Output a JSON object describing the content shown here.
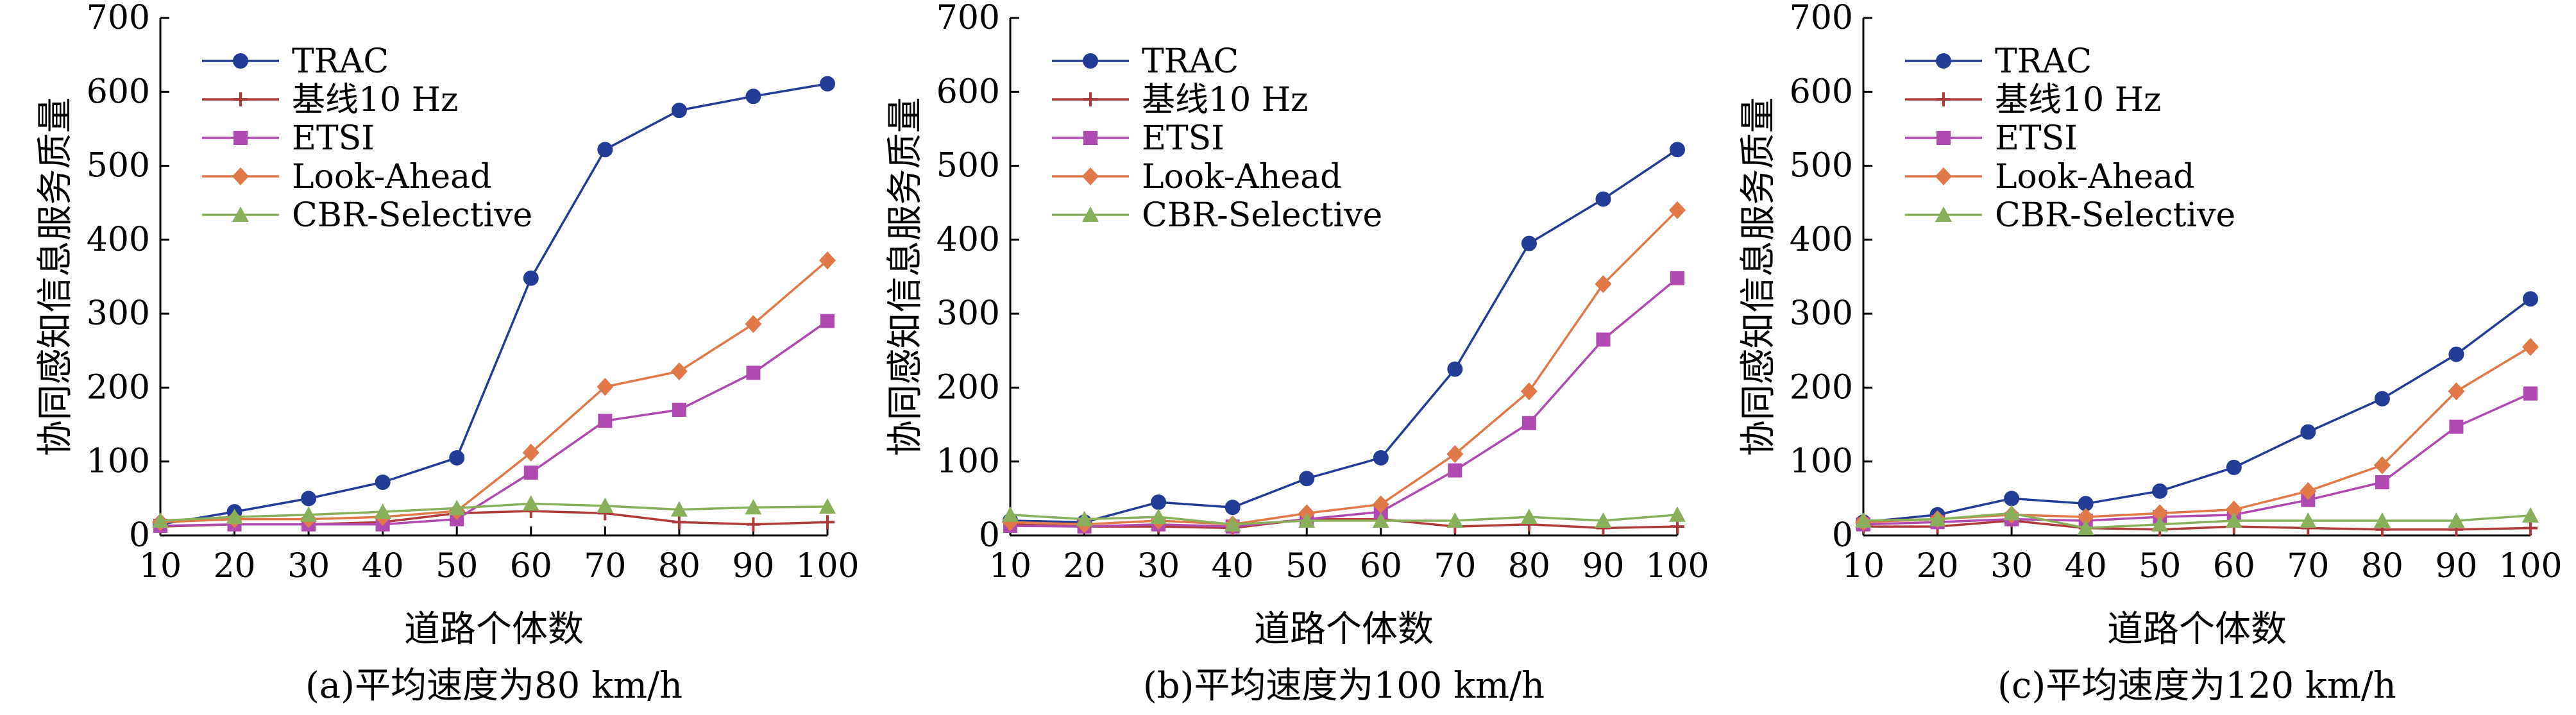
{
  "chart_data": [
    {
      "type": "line",
      "caption": "(a)平均速度为80 km/h",
      "xlabel": "道路个体数",
      "ylabel": "协同感知信息服务质量",
      "x": [
        10,
        20,
        30,
        40,
        50,
        60,
        70,
        80,
        90,
        100
      ],
      "xlim": [
        10,
        100
      ],
      "ylim": [
        0,
        700
      ],
      "xticks": [
        "10",
        "20",
        "30",
        "40",
        "50",
        "60",
        "70",
        "80",
        "90",
        "100"
      ],
      "yticks": [
        "0",
        "100",
        "200",
        "300",
        "400",
        "500",
        "600",
        "700"
      ],
      "legend_position": "top-left",
      "series": [
        {
          "name": "TRAC",
          "color": "#233c96",
          "marker": "circle",
          "values": [
            15,
            32,
            50,
            72,
            105,
            348,
            522,
            575,
            594,
            611
          ]
        },
        {
          "name": "基线10 Hz",
          "color": "#b03a3a",
          "marker": "plus",
          "values": [
            12,
            15,
            15,
            18,
            30,
            33,
            30,
            18,
            15,
            18
          ]
        },
        {
          "name": "ETSI",
          "color": "#b04ab0",
          "marker": "square",
          "values": [
            13,
            15,
            15,
            15,
            22,
            85,
            155,
            170,
            220,
            290
          ]
        },
        {
          "name": "Look-Ahead",
          "color": "#e07848",
          "marker": "diamond",
          "values": [
            18,
            22,
            22,
            25,
            33,
            112,
            201,
            222,
            286,
            372
          ]
        },
        {
          "name": "CBR-Selective",
          "color": "#88b05a",
          "marker": "triangle",
          "values": [
            20,
            25,
            28,
            32,
            37,
            43,
            40,
            35,
            38,
            39
          ]
        }
      ]
    },
    {
      "type": "line",
      "caption": "(b)平均速度为100 km/h",
      "xlabel": "道路个体数",
      "ylabel": "协同感知信息服务质量",
      "x": [
        10,
        20,
        30,
        40,
        50,
        60,
        70,
        80,
        90,
        100
      ],
      "xlim": [
        10,
        100
      ],
      "ylim": [
        0,
        700
      ],
      "xticks": [
        "10",
        "20",
        "30",
        "40",
        "50",
        "60",
        "70",
        "80",
        "90",
        "100"
      ],
      "yticks": [
        "0",
        "100",
        "200",
        "300",
        "400",
        "500",
        "600",
        "700"
      ],
      "legend_position": "top-left",
      "series": [
        {
          "name": "TRAC",
          "color": "#233c96",
          "marker": "circle",
          "values": [
            20,
            18,
            45,
            38,
            77,
            105,
            225,
            395,
            455,
            522
          ]
        },
        {
          "name": "基线10 Hz",
          "color": "#b03a3a",
          "marker": "plus",
          "values": [
            15,
            12,
            12,
            10,
            22,
            22,
            12,
            15,
            10,
            12
          ]
        },
        {
          "name": "ETSI",
          "color": "#b04ab0",
          "marker": "square",
          "values": [
            13,
            12,
            15,
            12,
            22,
            32,
            88,
            152,
            265,
            348
          ]
        },
        {
          "name": "Look-Ahead",
          "color": "#e07848",
          "marker": "diamond",
          "values": [
            18,
            15,
            20,
            15,
            30,
            42,
            110,
            195,
            340,
            440
          ]
        },
        {
          "name": "CBR-Selective",
          "color": "#88b05a",
          "marker": "triangle",
          "values": [
            28,
            22,
            25,
            15,
            20,
            20,
            20,
            25,
            20,
            28
          ]
        }
      ]
    },
    {
      "type": "line",
      "caption": "(c)平均速度为120 km/h",
      "xlabel": "道路个体数",
      "ylabel": "协同感知信息服务质量",
      "x": [
        10,
        20,
        30,
        40,
        50,
        60,
        70,
        80,
        90,
        100
      ],
      "xlim": [
        10,
        100
      ],
      "ylim": [
        0,
        700
      ],
      "xticks": [
        "10",
        "20",
        "30",
        "40",
        "50",
        "60",
        "70",
        "80",
        "90",
        "100"
      ],
      "yticks": [
        "0",
        "100",
        "200",
        "300",
        "400",
        "500",
        "600",
        "700"
      ],
      "legend_position": "top-left",
      "series": [
        {
          "name": "TRAC",
          "color": "#233c96",
          "marker": "circle",
          "values": [
            18,
            28,
            50,
            43,
            60,
            92,
            140,
            185,
            245,
            320
          ]
        },
        {
          "name": "基线10 Hz",
          "color": "#b03a3a",
          "marker": "plus",
          "values": [
            12,
            12,
            20,
            10,
            8,
            12,
            10,
            8,
            8,
            10
          ]
        },
        {
          "name": "ETSI",
          "color": "#b04ab0",
          "marker": "square",
          "values": [
            15,
            18,
            22,
            20,
            25,
            28,
            48,
            72,
            147,
            192
          ]
        },
        {
          "name": "Look-Ahead",
          "color": "#e07848",
          "marker": "diamond",
          "values": [
            18,
            22,
            28,
            25,
            30,
            35,
            60,
            95,
            195,
            255
          ]
        },
        {
          "name": "CBR-Selective",
          "color": "#88b05a",
          "marker": "triangle",
          "values": [
            20,
            22,
            30,
            10,
            15,
            20,
            20,
            20,
            20,
            27
          ]
        }
      ]
    }
  ]
}
